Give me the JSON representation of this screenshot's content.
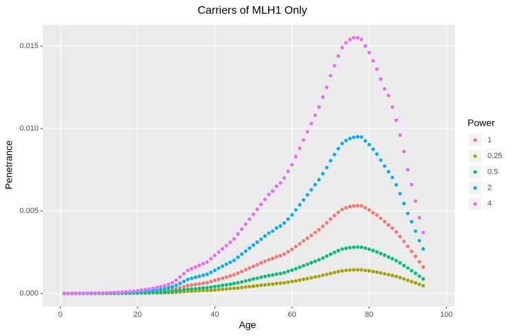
{
  "chart_data": {
    "type": "scatter",
    "title": "Carriers of MLH1 Only",
    "x_label": "Age",
    "y_label": "Penetrance",
    "legend_title": "Power",
    "legend_position": "right",
    "grid": true,
    "xlim": [
      -4.6,
      102.1
    ],
    "ylim": [
      -0.00079,
      0.01629
    ],
    "xticks": [
      0,
      20,
      40,
      60,
      80,
      100
    ],
    "yticks": [
      {
        "value": 0,
        "label": "0.000"
      },
      {
        "value": 0.005,
        "label": "0.005"
      },
      {
        "value": 0.01,
        "label": "0.010"
      },
      {
        "value": 0.015,
        "label": "0.015"
      }
    ],
    "x": [
      1,
      2,
      3,
      4,
      5,
      6,
      7,
      8,
      9,
      10,
      11,
      12,
      13,
      14,
      15,
      16,
      17,
      18,
      19,
      20,
      21,
      22,
      23,
      24,
      25,
      26,
      27,
      28,
      29,
      30,
      31,
      32,
      33,
      34,
      35,
      36,
      37,
      38,
      39,
      40,
      41,
      42,
      43,
      44,
      45,
      46,
      47,
      48,
      49,
      50,
      51,
      52,
      53,
      54,
      55,
      56,
      57,
      58,
      59,
      60,
      61,
      62,
      63,
      64,
      65,
      66,
      67,
      68,
      69,
      70,
      71,
      72,
      73,
      74,
      75,
      76,
      77,
      78,
      79,
      80,
      81,
      82,
      83,
      84,
      85,
      86,
      87,
      88,
      89,
      90,
      91,
      92,
      93,
      94
    ],
    "series": [
      {
        "name": "1",
        "color": "#F8766D",
        "values": [
          0,
          0,
          0,
          0,
          0,
          0,
          1e-05,
          1e-05,
          1e-05,
          1e-05,
          1e-05,
          1e-05,
          2e-05,
          2e-05,
          2e-05,
          3e-05,
          3e-05,
          4e-05,
          5e-05,
          6e-05,
          7e-05,
          8e-05,
          9e-05,
          0.00011,
          0.00012,
          0.00014,
          0.00016,
          0.00019,
          0.00022,
          0.00027,
          0.00034,
          0.00041,
          0.00048,
          0.00051,
          0.00055,
          0.00058,
          0.00062,
          0.00065,
          0.00072,
          0.00079,
          0.00086,
          0.00092,
          0.00099,
          0.00106,
          0.00113,
          0.00123,
          0.00133,
          0.00144,
          0.00154,
          0.00164,
          0.00174,
          0.00185,
          0.00195,
          0.00205,
          0.00212,
          0.00222,
          0.00229,
          0.00239,
          0.00253,
          0.00267,
          0.00284,
          0.00301,
          0.00318,
          0.00335,
          0.00352,
          0.00369,
          0.00386,
          0.00407,
          0.00428,
          0.00451,
          0.00472,
          0.00492,
          0.00509,
          0.00519,
          0.00526,
          0.0053,
          0.00532,
          0.00531,
          0.00519,
          0.00506,
          0.0049,
          0.00475,
          0.00455,
          0.00435,
          0.00415,
          0.00396,
          0.00373,
          0.00345,
          0.00315,
          0.00285,
          0.00255,
          0.00225,
          0.00192,
          0.0016
        ]
      },
      {
        "name": "0.25",
        "color": "#A3A500",
        "values": [
          0,
          0,
          0,
          0,
          0,
          0,
          0,
          0,
          0,
          0,
          0,
          0,
          0,
          0,
          1e-05,
          1e-05,
          1e-05,
          1e-05,
          1e-05,
          1e-05,
          2e-05,
          2e-05,
          2e-05,
          3e-05,
          3e-05,
          4e-05,
          4e-05,
          5e-05,
          6e-05,
          7e-05,
          9e-05,
          0.00011,
          0.00013,
          0.00014,
          0.00015,
          0.00016,
          0.00017,
          0.00018,
          0.00019,
          0.00021,
          0.00023,
          0.00025,
          0.00027,
          0.00029,
          0.00031,
          0.00033,
          0.00036,
          0.00039,
          0.00041,
          0.00044,
          0.00047,
          0.0005,
          0.00052,
          0.00055,
          0.00057,
          0.0006,
          0.00062,
          0.00064,
          0.00068,
          0.00072,
          0.00076,
          0.00081,
          0.00086,
          0.0009,
          0.00095,
          0.001,
          0.00104,
          0.0011,
          0.00115,
          0.00121,
          0.00127,
          0.00132,
          0.00137,
          0.0014,
          0.00142,
          0.00143,
          0.00143,
          0.00143,
          0.0014,
          0.00137,
          0.00133,
          0.00129,
          0.00124,
          0.00119,
          0.00114,
          0.00109,
          0.00103,
          0.00096,
          0.00088,
          0.0008,
          0.00072,
          0.00064,
          0.00055,
          0.00047
        ]
      },
      {
        "name": "0.5",
        "color": "#00BF7D",
        "values": [
          0,
          0,
          0,
          0,
          0,
          0,
          0,
          0,
          0,
          1e-05,
          1e-05,
          1e-05,
          1e-05,
          1e-05,
          1e-05,
          1e-05,
          2e-05,
          2e-05,
          2e-05,
          3e-05,
          4e-05,
          4e-05,
          5e-05,
          6e-05,
          6e-05,
          7e-05,
          9e-05,
          0.0001,
          0.00012,
          0.00015,
          0.00018,
          0.00022,
          0.00025,
          0.00027,
          0.00029,
          0.00031,
          0.00033,
          0.00034,
          0.00038,
          0.00042,
          0.00045,
          0.00049,
          0.00052,
          0.00056,
          0.0006,
          0.00065,
          0.0007,
          0.00076,
          0.00081,
          0.00087,
          0.00092,
          0.00098,
          0.00103,
          0.00108,
          0.00112,
          0.00117,
          0.00121,
          0.00126,
          0.00134,
          0.00141,
          0.0015,
          0.00159,
          0.00168,
          0.00177,
          0.00186,
          0.00195,
          0.00204,
          0.00215,
          0.00226,
          0.00238,
          0.00249,
          0.0026,
          0.00269,
          0.00274,
          0.00278,
          0.0028,
          0.00281,
          0.0028,
          0.00275,
          0.00268,
          0.0026,
          0.00252,
          0.00242,
          0.00232,
          0.00221,
          0.00211,
          0.00199,
          0.00185,
          0.00169,
          0.00154,
          0.00138,
          0.00122,
          0.00105,
          0.00088
        ]
      },
      {
        "name": "2",
        "color": "#00B0F6",
        "values": [
          0,
          0,
          0,
          0,
          1e-05,
          1e-05,
          1e-05,
          1e-05,
          1e-05,
          2e-05,
          2e-05,
          2e-05,
          3e-05,
          4e-05,
          4e-05,
          5e-05,
          6e-05,
          7e-05,
          9e-05,
          0.0001,
          0.00012,
          0.00014,
          0.00016,
          0.00019,
          0.00022,
          0.00025,
          0.00029,
          0.00034,
          0.0004,
          0.00049,
          0.00061,
          0.00073,
          0.00085,
          0.00092,
          0.00098,
          0.00104,
          0.0011,
          0.00116,
          0.00128,
          0.0014,
          0.00153,
          0.00165,
          0.00177,
          0.00189,
          0.00201,
          0.0022,
          0.00238,
          0.00256,
          0.00275,
          0.00293,
          0.00311,
          0.00329,
          0.00348,
          0.00366,
          0.00378,
          0.00397,
          0.00409,
          0.00427,
          0.00451,
          0.00476,
          0.00506,
          0.00537,
          0.00567,
          0.00598,
          0.00628,
          0.00659,
          0.00689,
          0.00726,
          0.00763,
          0.00805,
          0.00842,
          0.00878,
          0.00909,
          0.00927,
          0.00939,
          0.00946,
          0.0095,
          0.00948,
          0.00925,
          0.00902,
          0.00874,
          0.00845,
          0.00808,
          0.00772,
          0.00738,
          0.00703,
          0.00658,
          0.00605,
          0.00545,
          0.00485,
          0.00435,
          0.00378,
          0.0032,
          0.0027
        ]
      },
      {
        "name": "4",
        "color": "#E76BF3",
        "values": [
          0,
          0,
          0,
          0,
          1e-05,
          1e-05,
          1e-05,
          2e-05,
          2e-05,
          3e-05,
          3e-05,
          4e-05,
          5e-05,
          6e-05,
          7e-05,
          8e-05,
          0.0001,
          0.00012,
          0.00014,
          0.00017,
          0.0002,
          0.00023,
          0.00027,
          0.00031,
          0.00036,
          0.00041,
          0.00047,
          0.00055,
          0.00065,
          0.0008,
          0.001,
          0.0012,
          0.0014,
          0.0015,
          0.0016,
          0.0017,
          0.0018,
          0.0019,
          0.0021,
          0.0023,
          0.0025,
          0.0027,
          0.0029,
          0.0031,
          0.0033,
          0.0036,
          0.0039,
          0.0042,
          0.0045,
          0.0048,
          0.0051,
          0.0054,
          0.0057,
          0.006,
          0.0062,
          0.0065,
          0.0067,
          0.007,
          0.0074,
          0.0078,
          0.0083,
          0.0088,
          0.0093,
          0.0098,
          0.0103,
          0.0108,
          0.0113,
          0.0119,
          0.0125,
          0.0132,
          0.0138,
          0.0144,
          0.0149,
          0.0152,
          0.0154,
          0.0155,
          0.0155,
          0.0154,
          0.015,
          0.0146,
          0.0141,
          0.0136,
          0.013,
          0.0124,
          0.012,
          0.0113,
          0.0105,
          0.0096,
          0.0086,
          0.0075,
          0.0066,
          0.0056,
          0.0046,
          0.0037
        ]
      }
    ]
  }
}
